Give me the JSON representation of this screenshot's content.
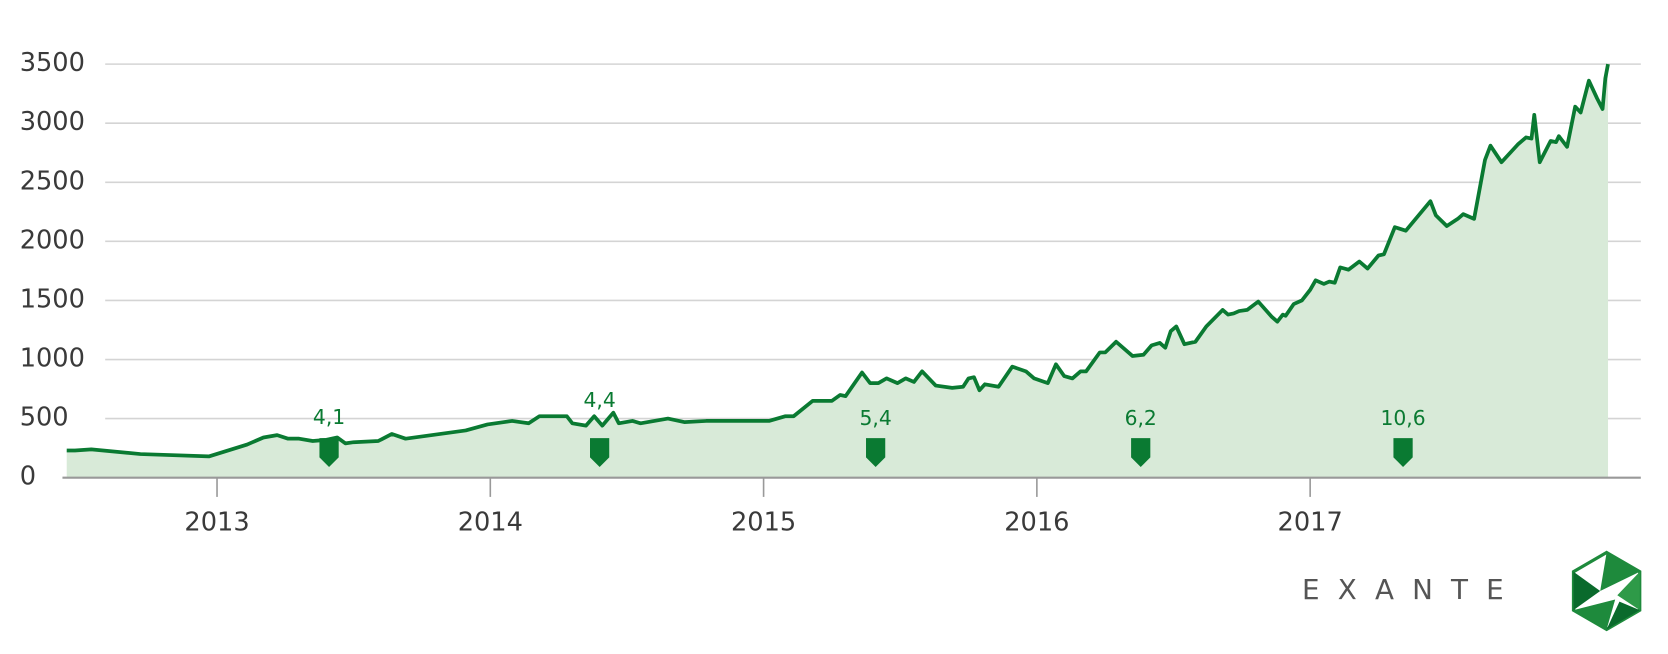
{
  "chart_data": {
    "type": "area-line",
    "color": "#0a7a32",
    "fill_color": "#d8ead8",
    "grid": true,
    "x": [
      2012.45,
      2012.48,
      2012.54,
      2012.72,
      2012.97,
      2013.11,
      2013.17,
      2013.22,
      2013.26,
      2013.3,
      2013.35,
      2013.4,
      2013.44,
      2013.47,
      2013.5,
      2013.59,
      2013.64,
      2013.69,
      2013.91,
      2013.99,
      2014.08,
      2014.14,
      2014.18,
      2014.28,
      2014.3,
      2014.35,
      2014.38,
      2014.41,
      2014.45,
      2014.47,
      2014.52,
      2014.55,
      2014.65,
      2014.71,
      2014.79,
      2015.02,
      2015.08,
      2015.11,
      2015.18,
      2015.25,
      2015.28,
      2015.3,
      2015.36,
      2015.39,
      2015.42,
      2015.45,
      2015.49,
      2015.52,
      2015.55,
      2015.58,
      2015.63,
      2015.69,
      2015.73,
      2015.75,
      2015.77,
      2015.79,
      2015.81,
      2015.86,
      2015.91,
      2015.96,
      2015.99,
      2016.04,
      2016.07,
      2016.1,
      2016.13,
      2016.16,
      2016.18,
      2016.23,
      2016.25,
      2016.29,
      2016.35,
      2016.39,
      2016.42,
      2016.45,
      2016.47,
      2016.49,
      2016.51,
      2016.54,
      2016.58,
      2016.62,
      2016.68,
      2016.7,
      2016.72,
      2016.74,
      2016.77,
      2016.81,
      2016.86,
      2016.88,
      2016.9,
      2016.91,
      2016.94,
      2016.97,
      2017.0,
      2017.02,
      2017.05,
      2017.07,
      2017.09,
      2017.11,
      2017.14,
      2017.18,
      2017.21,
      2017.25,
      2017.27,
      2017.31,
      2017.35,
      2017.44,
      2017.46,
      2017.5,
      2017.54,
      2017.56,
      2017.6,
      2017.64,
      2017.66,
      2017.7,
      2017.76,
      2017.79,
      2017.81,
      2017.82,
      2017.84,
      2017.88,
      2017.9,
      2017.91,
      2017.94,
      2017.97,
      2017.99,
      2018.02,
      2018.05,
      2018.07,
      2018.08,
      2018.09
    ],
    "values": [
      230,
      230,
      240,
      200,
      180,
      280,
      340,
      360,
      330,
      330,
      310,
      320,
      340,
      290,
      300,
      310,
      370,
      330,
      400,
      450,
      480,
      460,
      520,
      520,
      460,
      440,
      520,
      440,
      550,
      460,
      480,
      460,
      500,
      470,
      480,
      480,
      520,
      520,
      650,
      650,
      700,
      690,
      890,
      800,
      800,
      840,
      800,
      840,
      810,
      900,
      780,
      760,
      770,
      840,
      850,
      740,
      790,
      770,
      940,
      900,
      840,
      800,
      960,
      860,
      840,
      900,
      900,
      1060,
      1060,
      1150,
      1030,
      1040,
      1120,
      1140,
      1100,
      1240,
      1280,
      1130,
      1150,
      1280,
      1420,
      1380,
      1390,
      1410,
      1420,
      1490,
      1360,
      1320,
      1380,
      1370,
      1470,
      1500,
      1590,
      1670,
      1640,
      1660,
      1650,
      1780,
      1760,
      1830,
      1770,
      1880,
      1890,
      2120,
      2090,
      2340,
      2220,
      2130,
      2190,
      2230,
      2190,
      2690,
      2810,
      2670,
      2820,
      2880,
      2870,
      3070,
      2670,
      2850,
      2840,
      2890,
      2800,
      3140,
      3090,
      3360,
      3210,
      3120,
      3380,
      3500
    ],
    "xlim": [
      2012.45,
      2018.21
    ],
    "xticks": [
      2013,
      2014,
      2015,
      2016,
      2017
    ],
    "ylim": [
      0,
      3500
    ],
    "yticks": [
      0,
      500,
      1000,
      1500,
      2000,
      2500,
      3000,
      3500
    ],
    "annotations": [
      {
        "x": 2013.41,
        "label": "4,1"
      },
      {
        "x": 2014.4,
        "label": "4,4"
      },
      {
        "x": 2015.41,
        "label": "5,4"
      },
      {
        "x": 2016.38,
        "label": "6,2"
      },
      {
        "x": 2017.34,
        "label": "10,6"
      }
    ]
  },
  "logo_text": "EXANTE"
}
